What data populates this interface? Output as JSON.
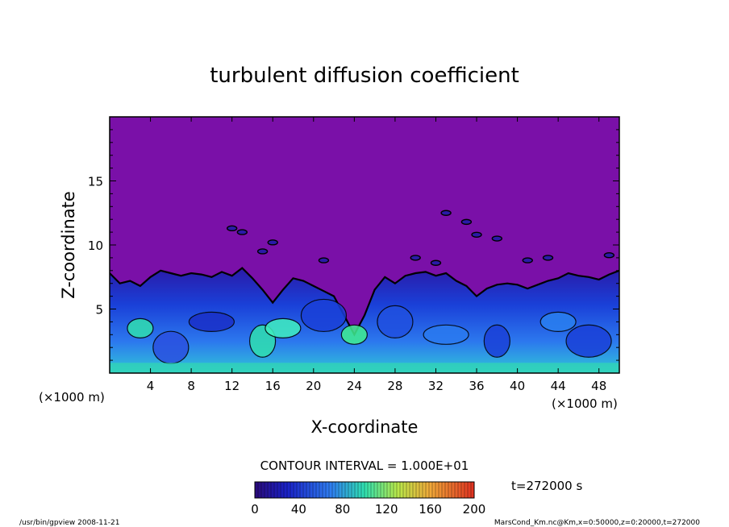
{
  "chart_data": {
    "type": "heatmap",
    "title": "turbulent diffusion coefficient",
    "xlabel": "X-coordinate",
    "ylabel": "Z-coordinate",
    "x_unit_left": "(×1000 m)",
    "x_unit_right": "(×1000 m)",
    "xlim": [
      0,
      50
    ],
    "ylim": [
      0,
      20
    ],
    "x_ticks": [
      4,
      8,
      12,
      16,
      20,
      24,
      28,
      32,
      36,
      40,
      44,
      48
    ],
    "y_ticks": [
      5,
      10,
      15
    ],
    "contour_interval_text": "CONTOUR INTERVAL = 1.000E+01",
    "time_text": "t=272000 s",
    "colorbar": {
      "range": [
        0,
        200
      ],
      "ticks": [
        0,
        40,
        80,
        120,
        160,
        200
      ]
    },
    "boundary_layer_top": [
      [
        0,
        7.8
      ],
      [
        1,
        7.0
      ],
      [
        2,
        7.2
      ],
      [
        3,
        6.8
      ],
      [
        4,
        7.5
      ],
      [
        5,
        8.0
      ],
      [
        6,
        7.8
      ],
      [
        7,
        7.6
      ],
      [
        8,
        7.8
      ],
      [
        9,
        7.7
      ],
      [
        10,
        7.5
      ],
      [
        11,
        7.9
      ],
      [
        12,
        7.6
      ],
      [
        13,
        8.2
      ],
      [
        14,
        7.4
      ],
      [
        15,
        6.5
      ],
      [
        16,
        5.5
      ],
      [
        17,
        6.5
      ],
      [
        18,
        7.4
      ],
      [
        19,
        7.2
      ],
      [
        20,
        6.8
      ],
      [
        21,
        6.4
      ],
      [
        22,
        6.0
      ],
      [
        23,
        4.5
      ],
      [
        24,
        3.0
      ],
      [
        25,
        4.5
      ],
      [
        26,
        6.5
      ],
      [
        27,
        7.5
      ],
      [
        28,
        7.0
      ],
      [
        29,
        7.6
      ],
      [
        30,
        7.8
      ],
      [
        31,
        7.9
      ],
      [
        32,
        7.6
      ],
      [
        33,
        7.8
      ],
      [
        34,
        7.2
      ],
      [
        35,
        6.8
      ],
      [
        36,
        6.0
      ],
      [
        37,
        6.6
      ],
      [
        38,
        6.9
      ],
      [
        39,
        7.0
      ],
      [
        40,
        6.9
      ],
      [
        41,
        6.6
      ],
      [
        42,
        6.9
      ],
      [
        43,
        7.2
      ],
      [
        44,
        7.4
      ],
      [
        45,
        7.8
      ],
      [
        46,
        7.6
      ],
      [
        47,
        7.5
      ],
      [
        48,
        7.3
      ],
      [
        49,
        7.7
      ],
      [
        50,
        8.0
      ]
    ]
  },
  "footer": {
    "left": "/usr/bin/gpview   2008-11-21",
    "right": "MarsCond_Km.nc@Km,x=0:50000,z=0:20000,t=272000"
  }
}
